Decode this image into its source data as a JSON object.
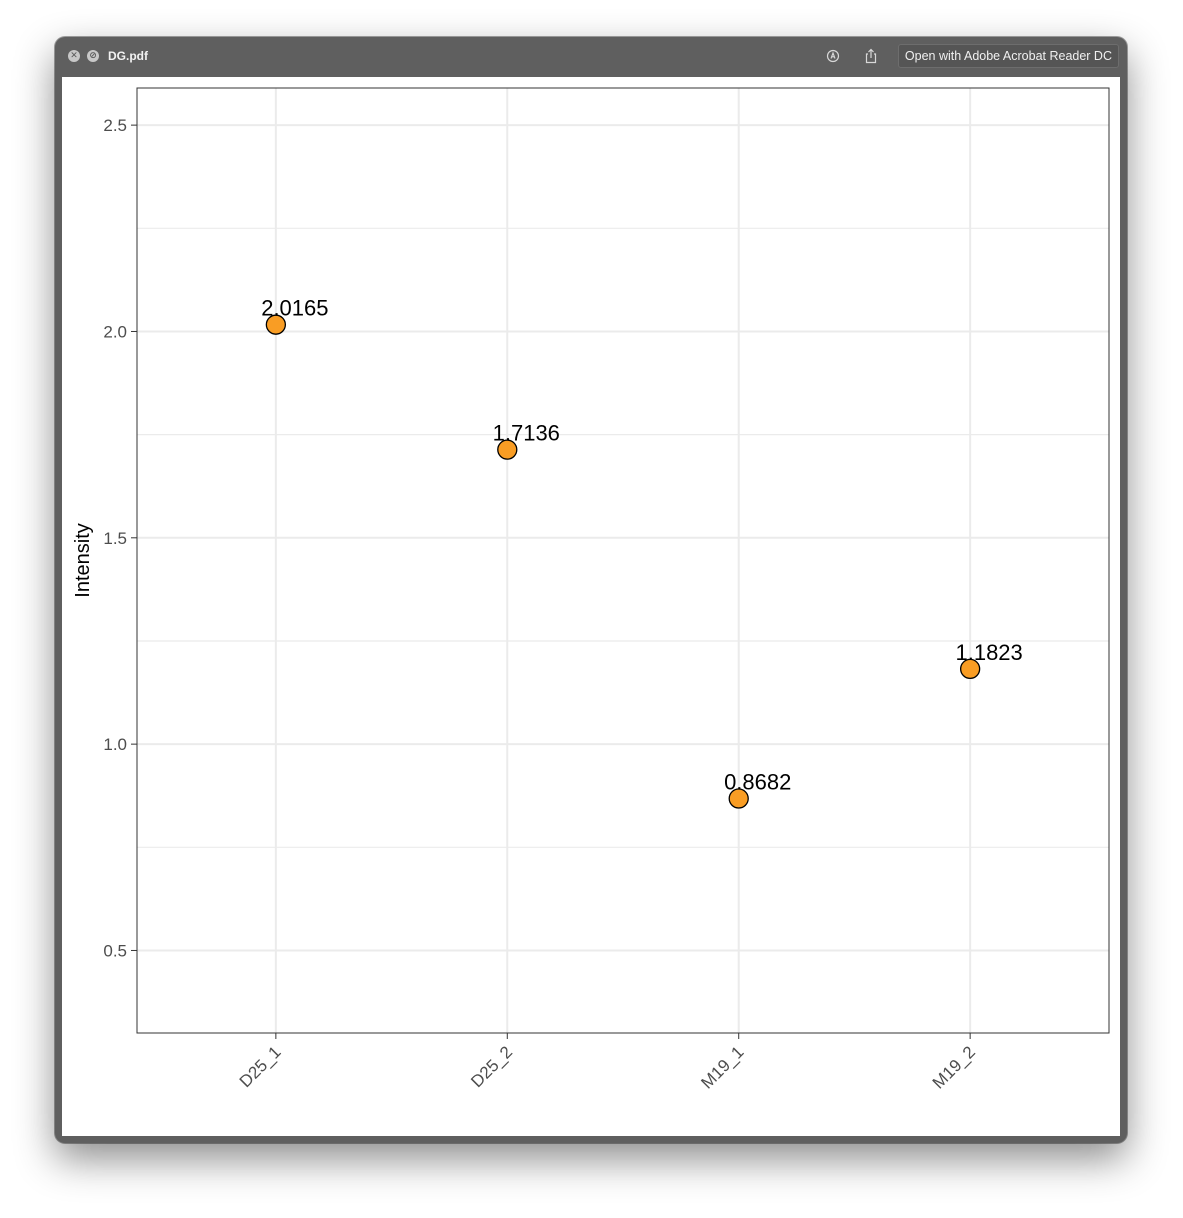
{
  "window": {
    "title": "DG.pdf",
    "open_with_label": "Open with Adobe Acrobat Reader DC",
    "icons": [
      "close-icon",
      "minimize-icon",
      "markup-icon",
      "share-icon"
    ]
  },
  "chart_data": {
    "type": "scatter",
    "title": "",
    "xlabel": "",
    "ylabel": "Intensity",
    "categories": [
      "D25_1",
      "D25_2",
      "M19_1",
      "M19_2"
    ],
    "values": [
      2.0165,
      1.7136,
      0.8682,
      1.1823
    ],
    "labels": [
      "2.0165",
      "1.7136",
      "0.8682",
      "1.1823"
    ],
    "ylim": [
      0.3,
      2.59
    ],
    "yticks": [
      0.5,
      1.0,
      1.5,
      2.0,
      2.5
    ],
    "ytick_labels": [
      "0.5",
      "1.0",
      "1.5",
      "2.0",
      "2.5"
    ],
    "grid": true,
    "legend": "none",
    "colors": {
      "point_fill": "#f99d24",
      "point_stroke": "#000000",
      "grid": "#ebebeb",
      "panel_border": "#333333"
    }
  }
}
